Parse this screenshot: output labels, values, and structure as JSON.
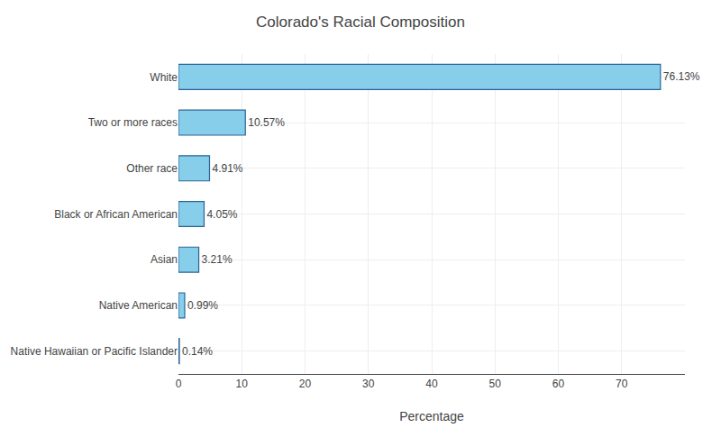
{
  "chart_data": {
    "type": "bar",
    "orientation": "horizontal",
    "title": "Colorado's Racial Composition",
    "xlabel": "Percentage",
    "categories": [
      "Native Hawaiian or Pacific Islander",
      "Native American",
      "Asian",
      "Black or African American",
      "Other race",
      "Two or more races",
      "White"
    ],
    "values": [
      0.14,
      0.99,
      3.21,
      4.05,
      4.91,
      10.57,
      76.13
    ],
    "value_labels": [
      "0.14%",
      "0.99%",
      "3.21%",
      "4.05%",
      "4.91%",
      "10.57%",
      "76.13%"
    ],
    "data_labels": true,
    "color": "#87CEEB",
    "xlim": [
      0,
      80
    ],
    "xticks": [
      0,
      10,
      20,
      30,
      40,
      50,
      60,
      70
    ],
    "grid": true
  }
}
